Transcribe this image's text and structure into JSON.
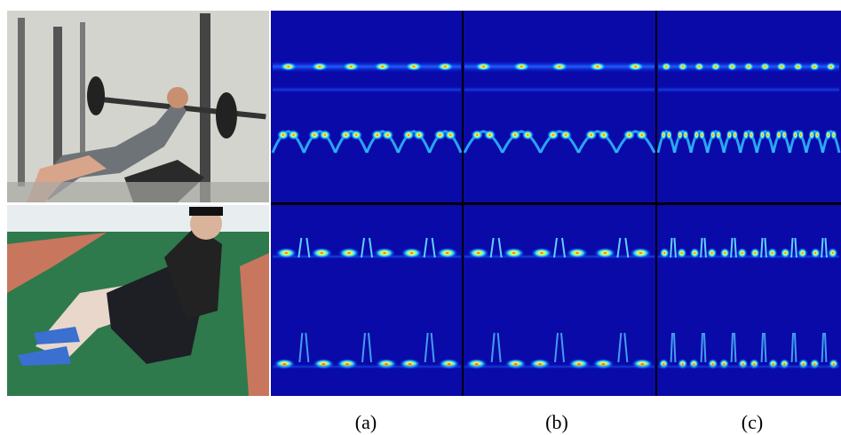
{
  "figure": {
    "panel_labels": [
      "(a)",
      "(b)",
      "(c)"
    ]
  }
}
